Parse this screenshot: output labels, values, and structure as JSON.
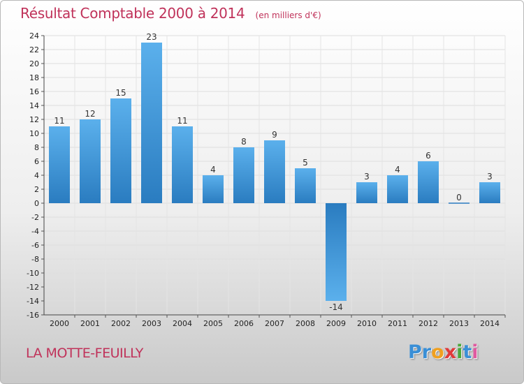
{
  "header": {
    "title": "Résultat Comptable 2000 à 2014",
    "unit": "(en milliers d'€)"
  },
  "footer": {
    "town": "LA MOTTE-FEUILLY",
    "brand_letters": [
      "P",
      "r",
      "o",
      "x",
      "i",
      "t",
      "i"
    ],
    "brand_colors": [
      "#3a8fd6",
      "#3a8fd6",
      "#f0a020",
      "#e03a3a",
      "#4aa83a",
      "#3a8fd6",
      "#e05aa0"
    ]
  },
  "colors": {
    "title": "#c0325a",
    "bar_light": "#5bb0ec",
    "bar_dark": "#2a7cc0",
    "grid": "#dddddd"
  },
  "chart_data": {
    "type": "bar",
    "title": "Résultat Comptable 2000 à 2014",
    "ylabel": "(en milliers d'€)",
    "xlabel": "",
    "categories": [
      "2000",
      "2001",
      "2002",
      "2003",
      "2004",
      "2005",
      "2006",
      "2007",
      "2008",
      "2009",
      "2010",
      "2011",
      "2012",
      "2013",
      "2014"
    ],
    "values": [
      11,
      12,
      15,
      23,
      11,
      4,
      8,
      9,
      5,
      -14,
      3,
      4,
      6,
      0,
      3
    ],
    "ylim": [
      -16,
      24
    ],
    "ytick_step": 2,
    "grid": true,
    "legend": "none"
  }
}
